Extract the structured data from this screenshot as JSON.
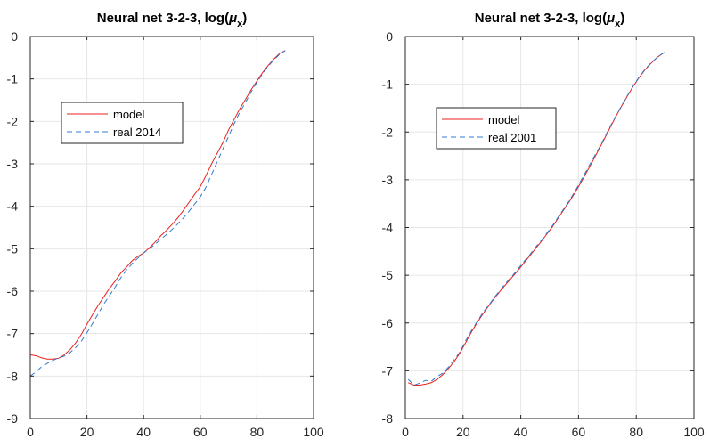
{
  "chart_data": [
    {
      "type": "line",
      "title": "Neural net 3-2-3, log(",
      "title_symbol": "μ",
      "title_subscript": "x",
      "title_suffix": ")",
      "xlim": [
        0,
        100
      ],
      "ylim": [
        -9,
        0
      ],
      "xticks": [
        0,
        20,
        40,
        60,
        80,
        100
      ],
      "yticks": [
        -9,
        -8,
        -7,
        -6,
        -5,
        -4,
        -3,
        -2,
        -1,
        0
      ],
      "grid": true,
      "legend_position": "upper-left",
      "series": [
        {
          "name": "model",
          "color": "#e8201f",
          "style": "solid",
          "x": [
            0,
            2,
            4,
            6,
            8,
            10,
            12,
            14,
            16,
            18,
            20,
            22,
            24,
            26,
            28,
            30,
            32,
            34,
            36,
            38,
            40,
            42,
            44,
            46,
            48,
            50,
            52,
            54,
            56,
            58,
            60,
            62,
            64,
            66,
            68,
            70,
            72,
            74,
            76,
            78,
            80,
            82,
            84,
            86,
            88,
            90
          ],
          "y": [
            -7.5,
            -7.52,
            -7.57,
            -7.6,
            -7.6,
            -7.58,
            -7.5,
            -7.38,
            -7.22,
            -7.02,
            -6.78,
            -6.55,
            -6.33,
            -6.13,
            -5.93,
            -5.76,
            -5.57,
            -5.43,
            -5.28,
            -5.18,
            -5.1,
            -4.98,
            -4.85,
            -4.7,
            -4.57,
            -4.43,
            -4.28,
            -4.1,
            -3.91,
            -3.72,
            -3.54,
            -3.28,
            -3.0,
            -2.75,
            -2.5,
            -2.2,
            -1.95,
            -1.7,
            -1.48,
            -1.25,
            -1.05,
            -0.85,
            -0.68,
            -0.53,
            -0.4,
            -0.33
          ]
        },
        {
          "name": "real 2014",
          "color": "#2f7bd1",
          "style": "dashed",
          "x": [
            0,
            2,
            4,
            6,
            8,
            10,
            12,
            14,
            16,
            18,
            20,
            22,
            24,
            26,
            28,
            30,
            32,
            34,
            36,
            38,
            40,
            42,
            44,
            46,
            48,
            50,
            52,
            54,
            56,
            58,
            60,
            62,
            64,
            66,
            68,
            70,
            72,
            74,
            76,
            78,
            80,
            82,
            84,
            86,
            88,
            90
          ],
          "y": [
            -8.0,
            -7.9,
            -7.78,
            -7.7,
            -7.63,
            -7.57,
            -7.53,
            -7.45,
            -7.33,
            -7.18,
            -6.98,
            -6.76,
            -6.53,
            -6.3,
            -6.1,
            -5.9,
            -5.68,
            -5.5,
            -5.35,
            -5.22,
            -5.1,
            -5.0,
            -4.9,
            -4.78,
            -4.67,
            -4.55,
            -4.42,
            -4.28,
            -4.12,
            -3.95,
            -3.78,
            -3.55,
            -3.25,
            -2.95,
            -2.65,
            -2.35,
            -2.05,
            -1.78,
            -1.55,
            -1.3,
            -1.08,
            -0.88,
            -0.7,
            -0.55,
            -0.42,
            -0.33
          ]
        }
      ]
    },
    {
      "type": "line",
      "title": "Neural net 3-2-3, log(",
      "title_symbol": "μ",
      "title_subscript": "x",
      "title_suffix": ")",
      "xlim": [
        0,
        100
      ],
      "ylim": [
        -8,
        0
      ],
      "xticks": [
        0,
        20,
        40,
        60,
        80,
        100
      ],
      "yticks": [
        -8,
        -7,
        -6,
        -5,
        -4,
        -3,
        -2,
        -1,
        0
      ],
      "grid": true,
      "legend_position": "upper-left",
      "series": [
        {
          "name": "model",
          "color": "#e8201f",
          "style": "solid",
          "x": [
            1,
            3,
            5,
            7,
            9,
            11,
            13,
            15,
            17,
            19,
            21,
            23,
            25,
            27,
            29,
            31,
            33,
            35,
            37,
            39,
            41,
            43,
            45,
            47,
            49,
            51,
            53,
            55,
            57,
            59,
            61,
            63,
            65,
            67,
            69,
            71,
            73,
            75,
            77,
            79,
            81,
            83,
            85,
            87,
            89,
            90
          ],
          "y": [
            -7.25,
            -7.3,
            -7.3,
            -7.28,
            -7.25,
            -7.18,
            -7.08,
            -6.95,
            -6.8,
            -6.62,
            -6.4,
            -6.18,
            -5.98,
            -5.8,
            -5.63,
            -5.47,
            -5.32,
            -5.18,
            -5.04,
            -4.9,
            -4.75,
            -4.6,
            -4.45,
            -4.3,
            -4.14,
            -3.98,
            -3.8,
            -3.62,
            -3.44,
            -3.25,
            -3.04,
            -2.82,
            -2.6,
            -2.37,
            -2.14,
            -1.9,
            -1.67,
            -1.45,
            -1.24,
            -1.04,
            -0.86,
            -0.7,
            -0.57,
            -0.45,
            -0.36,
            -0.33
          ]
        },
        {
          "name": "real 2001",
          "color": "#2f7bd1",
          "style": "dashed",
          "x": [
            1,
            3,
            5,
            7,
            9,
            11,
            13,
            15,
            17,
            19,
            21,
            23,
            25,
            27,
            29,
            31,
            33,
            35,
            37,
            39,
            41,
            43,
            45,
            47,
            49,
            51,
            53,
            55,
            57,
            59,
            61,
            63,
            65,
            67,
            69,
            71,
            73,
            75,
            77,
            79,
            81,
            83,
            85,
            87,
            89,
            90
          ],
          "y": [
            -7.18,
            -7.3,
            -7.26,
            -7.2,
            -7.22,
            -7.12,
            -7.05,
            -6.92,
            -6.76,
            -6.6,
            -6.36,
            -6.15,
            -5.96,
            -5.77,
            -5.62,
            -5.45,
            -5.3,
            -5.15,
            -5.02,
            -4.87,
            -4.72,
            -4.58,
            -4.42,
            -4.28,
            -4.12,
            -3.96,
            -3.78,
            -3.6,
            -3.42,
            -3.22,
            -3.0,
            -2.78,
            -2.56,
            -2.35,
            -2.12,
            -1.88,
            -1.66,
            -1.44,
            -1.23,
            -1.03,
            -0.85,
            -0.69,
            -0.56,
            -0.45,
            -0.36,
            -0.33
          ]
        }
      ]
    }
  ]
}
